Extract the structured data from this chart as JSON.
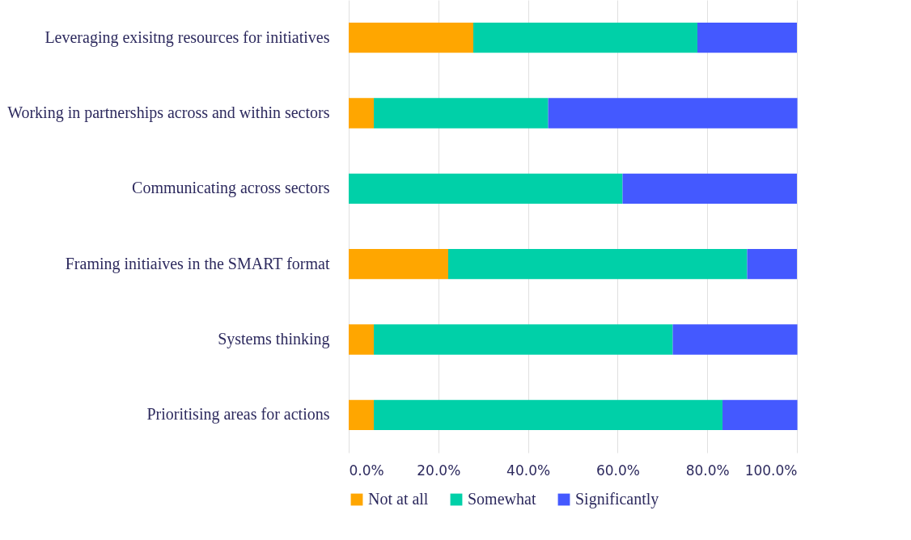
{
  "chart_data": {
    "type": "bar",
    "orientation": "horizontal",
    "stacked": true,
    "categories": [
      "Leveraging exisitng resources for initiatives",
      "Working in partnerships across and within sectors",
      "Communicating across sectors",
      "Framing initiaives in the SMART format",
      "Systems thinking",
      "Prioritising areas for actions"
    ],
    "series": [
      {
        "name": "Not at all",
        "color": "#ffa600",
        "values": [
          27.8,
          5.6,
          0,
          22.2,
          5.6,
          5.6
        ]
      },
      {
        "name": "Somewhat",
        "color": "#00d0a8",
        "values": [
          50,
          38.9,
          61.1,
          66.7,
          66.7,
          77.8
        ]
      },
      {
        "name": "Significantly",
        "color": "#4459ff",
        "values": [
          22.2,
          55.6,
          38.9,
          11.1,
          27.8,
          16.7
        ]
      }
    ],
    "xlim": [
      0,
      100
    ],
    "xticks": [
      {
        "value": 0,
        "label": "0.0%"
      },
      {
        "value": 20,
        "label": "20.0%"
      },
      {
        "value": 40,
        "label": "40.0%"
      },
      {
        "value": 60,
        "label": "60.0%"
      },
      {
        "value": 80,
        "label": "80.0%"
      },
      {
        "value": 100,
        "label": "100.0%"
      }
    ],
    "grid": "x",
    "legend": "bottom"
  }
}
